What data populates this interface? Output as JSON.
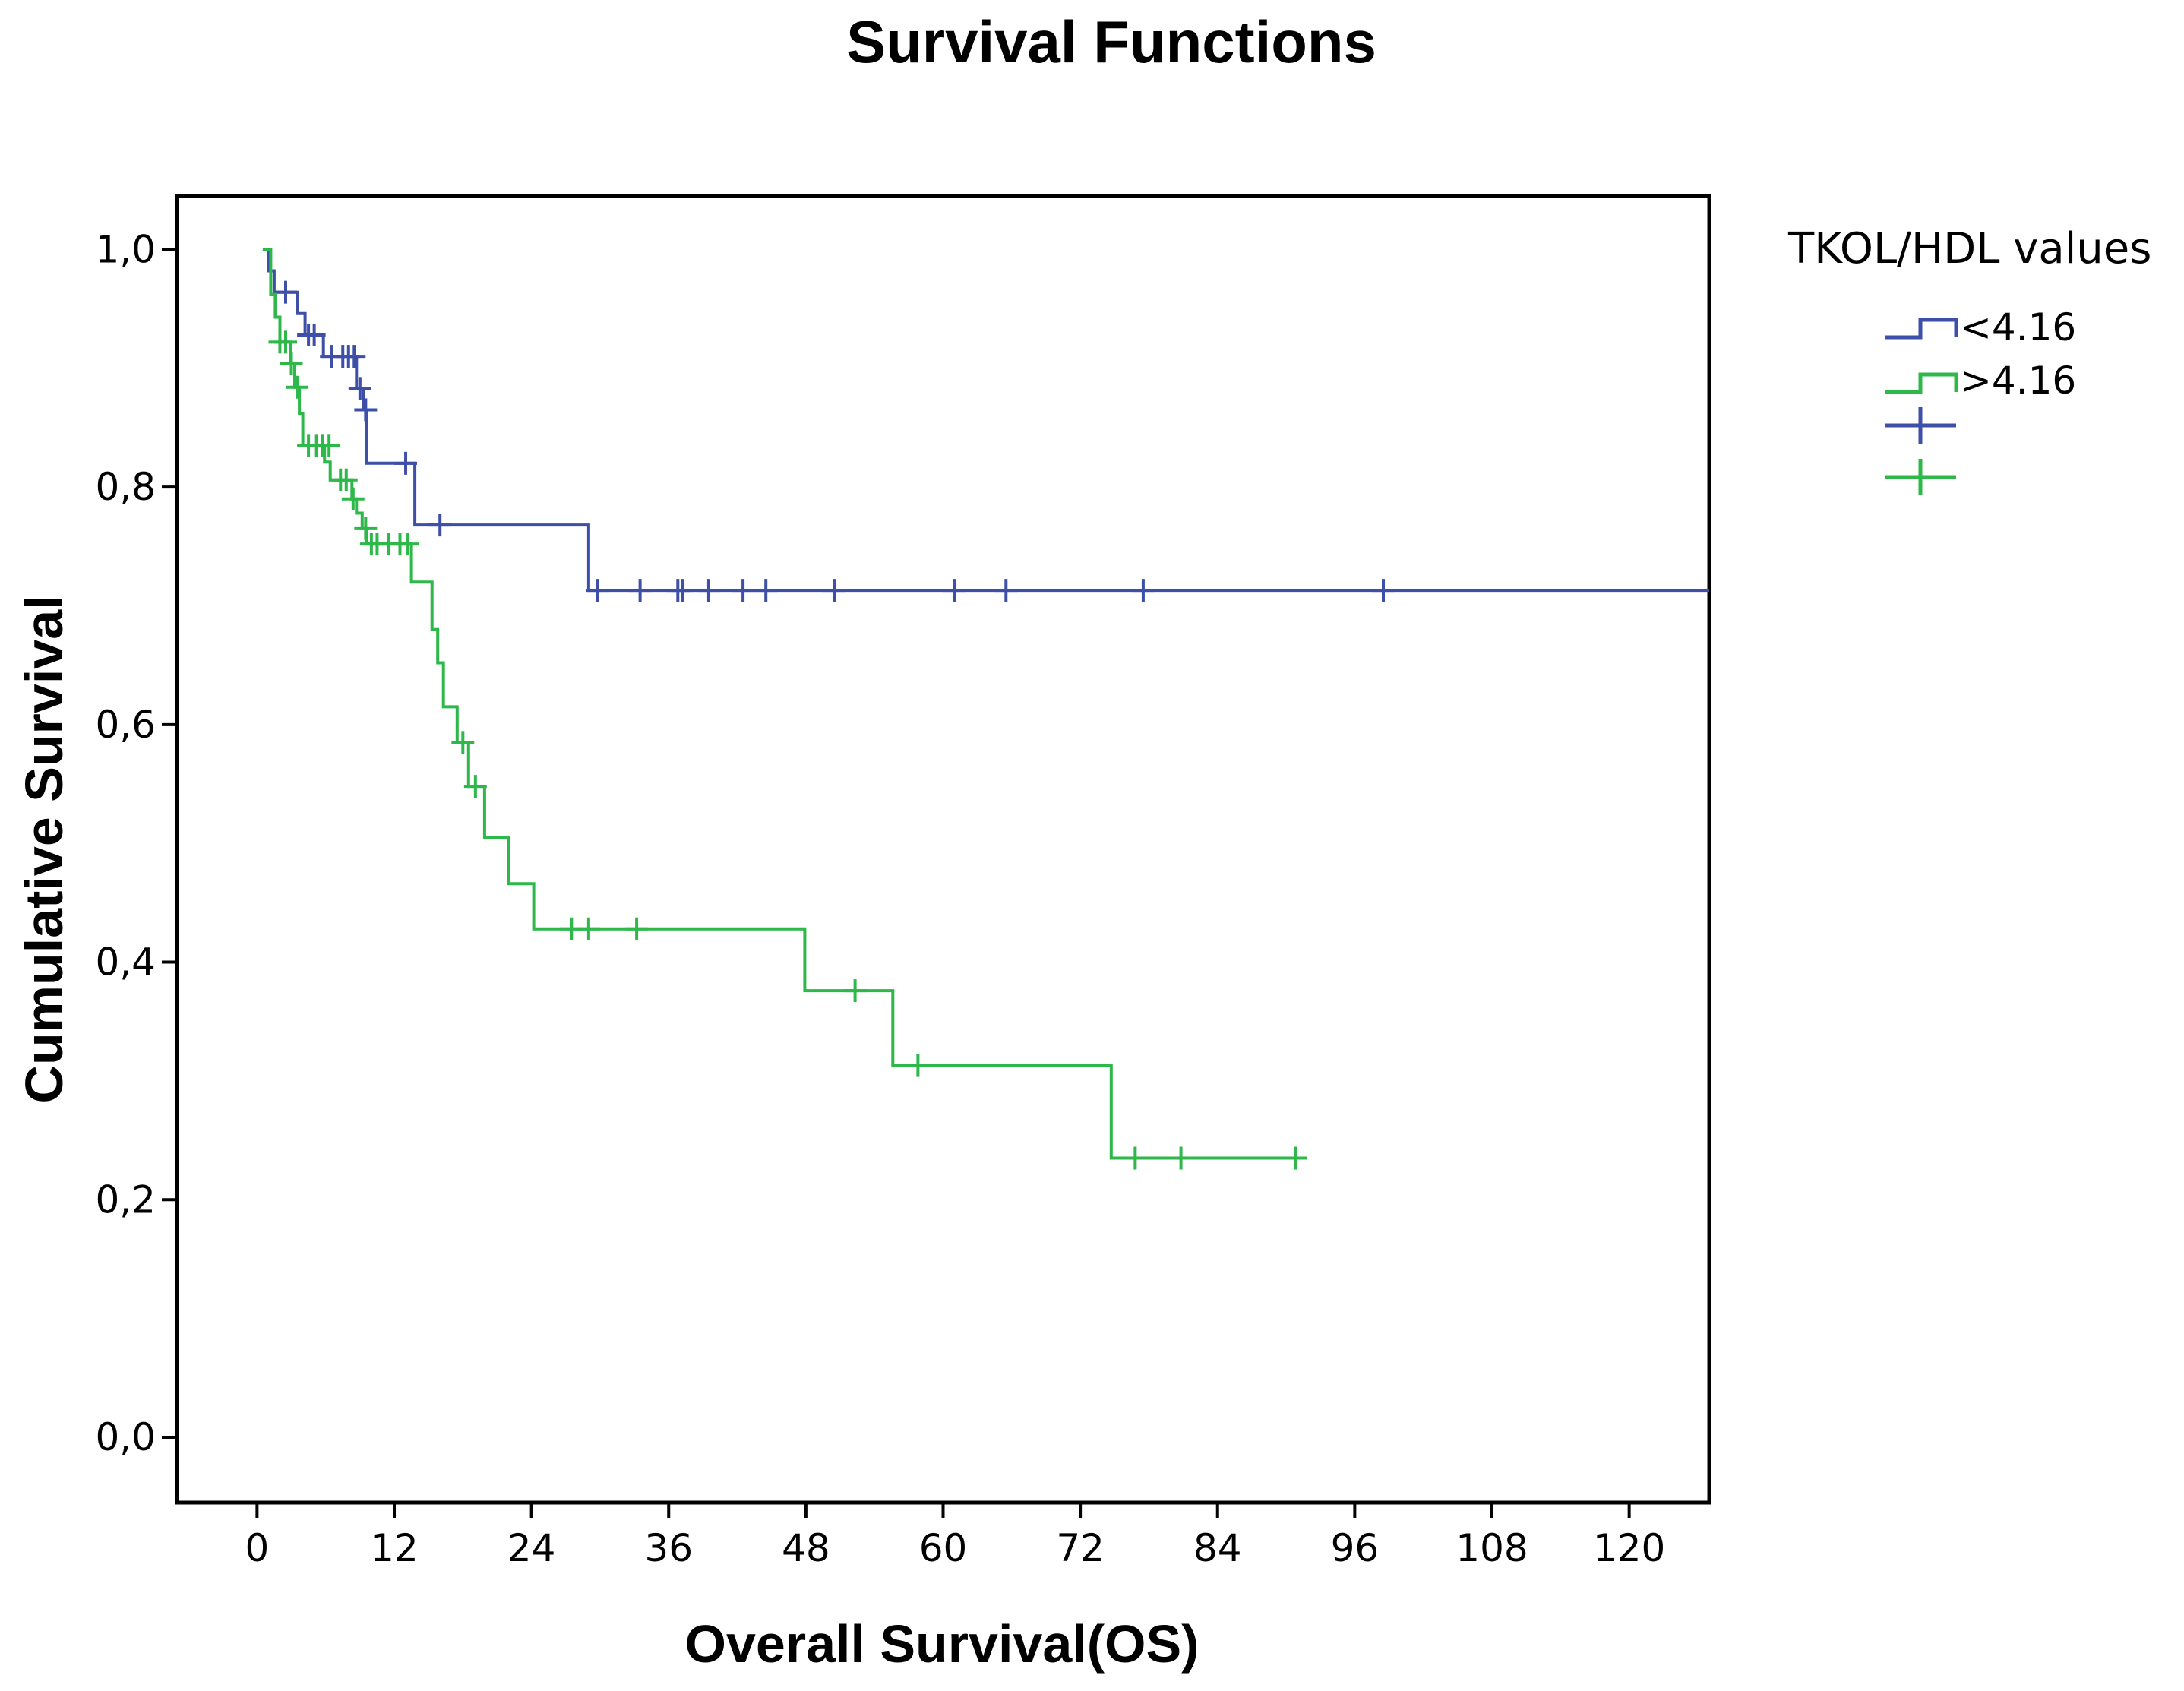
{
  "chart_data": {
    "type": "line",
    "subtype": "kaplan-meier step",
    "title": "Survival Functions",
    "xlabel": "Overall Survival(OS)",
    "ylabel": "Cumulative Survival",
    "xlim": [
      -7,
      127
    ],
    "ylim": [
      -0.055,
      1.045
    ],
    "xticks": [
      0,
      12,
      24,
      36,
      48,
      60,
      72,
      84,
      96,
      108,
      120
    ],
    "yticks": [
      0.0,
      0.2,
      0.4,
      0.6,
      0.8,
      1.0
    ],
    "xtick_labels": [
      "0",
      "12",
      "24",
      "36",
      "48",
      "60",
      "72",
      "84",
      "96",
      "108",
      "120"
    ],
    "ytick_labels": [
      "0,0",
      "0,2",
      "0,4",
      "0,6",
      "0,8",
      "1,0"
    ],
    "legend": {
      "title": "TKOL/HDL values",
      "position": "right",
      "entries": [
        "<4.16",
        ">4.16"
      ]
    },
    "grid": false,
    "series": [
      {
        "name": "<4.16",
        "color": "#3e4fa8",
        "steps": [
          [
            0.5,
            1.0
          ],
          [
            1.0,
            0.982
          ],
          [
            1.5,
            0.964
          ],
          [
            3.5,
            0.946
          ],
          [
            4.2,
            0.928
          ],
          [
            5.8,
            0.91
          ],
          [
            8.7,
            0.883
          ],
          [
            9.3,
            0.865
          ],
          [
            9.6,
            0.82
          ],
          [
            13.8,
            0.768
          ],
          [
            29.0,
            0.713
          ],
          [
            127,
            0.713
          ]
        ],
        "censored": [
          [
            2.5,
            0.964
          ],
          [
            4.5,
            0.928
          ],
          [
            5.0,
            0.928
          ],
          [
            6.5,
            0.91
          ],
          [
            7.5,
            0.91
          ],
          [
            8.0,
            0.91
          ],
          [
            8.5,
            0.91
          ],
          [
            9.0,
            0.883
          ],
          [
            9.5,
            0.865
          ],
          [
            13.0,
            0.82
          ],
          [
            16.0,
            0.768
          ],
          [
            29.8,
            0.713
          ],
          [
            33.5,
            0.713
          ],
          [
            36.8,
            0.713
          ],
          [
            37.2,
            0.713
          ],
          [
            39.5,
            0.713
          ],
          [
            42.5,
            0.713
          ],
          [
            44.5,
            0.713
          ],
          [
            50.5,
            0.713
          ],
          [
            61.0,
            0.713
          ],
          [
            65.5,
            0.713
          ],
          [
            77.5,
            0.713
          ],
          [
            98.5,
            0.713
          ]
        ]
      },
      {
        "name": ">4.16",
        "color": "#2eb84a",
        "steps": [
          [
            0.5,
            1.0
          ],
          [
            1.2,
            0.962
          ],
          [
            1.6,
            0.943
          ],
          [
            2.0,
            0.922
          ],
          [
            2.9,
            0.904
          ],
          [
            3.3,
            0.884
          ],
          [
            3.7,
            0.862
          ],
          [
            4.0,
            0.835
          ],
          [
            5.9,
            0.821
          ],
          [
            6.4,
            0.806
          ],
          [
            8.3,
            0.79
          ],
          [
            8.7,
            0.778
          ],
          [
            9.2,
            0.765
          ],
          [
            9.6,
            0.752
          ],
          [
            13.5,
            0.72
          ],
          [
            15.3,
            0.68
          ],
          [
            15.8,
            0.652
          ],
          [
            16.3,
            0.615
          ],
          [
            17.5,
            0.585
          ],
          [
            18.5,
            0.548
          ],
          [
            19.9,
            0.505
          ],
          [
            22.0,
            0.466
          ],
          [
            24.2,
            0.428
          ],
          [
            47.9,
            0.376
          ],
          [
            55.6,
            0.313
          ],
          [
            74.7,
            0.235
          ],
          [
            91,
            0.235
          ]
        ],
        "censored": [
          [
            2.0,
            0.922
          ],
          [
            2.5,
            0.922
          ],
          [
            3.0,
            0.904
          ],
          [
            3.5,
            0.884
          ],
          [
            4.5,
            0.835
          ],
          [
            5.2,
            0.835
          ],
          [
            5.7,
            0.835
          ],
          [
            6.3,
            0.835
          ],
          [
            7.3,
            0.806
          ],
          [
            7.8,
            0.806
          ],
          [
            8.4,
            0.79
          ],
          [
            9.5,
            0.765
          ],
          [
            10.0,
            0.752
          ],
          [
            10.5,
            0.752
          ],
          [
            11.5,
            0.752
          ],
          [
            12.5,
            0.752
          ],
          [
            13.2,
            0.752
          ],
          [
            18.0,
            0.585
          ],
          [
            19.1,
            0.548
          ],
          [
            27.5,
            0.428
          ],
          [
            29.0,
            0.428
          ],
          [
            33.2,
            0.428
          ],
          [
            52.3,
            0.376
          ],
          [
            57.8,
            0.313
          ],
          [
            76.8,
            0.235
          ],
          [
            80.8,
            0.235
          ],
          [
            90.8,
            0.235
          ]
        ]
      }
    ]
  }
}
